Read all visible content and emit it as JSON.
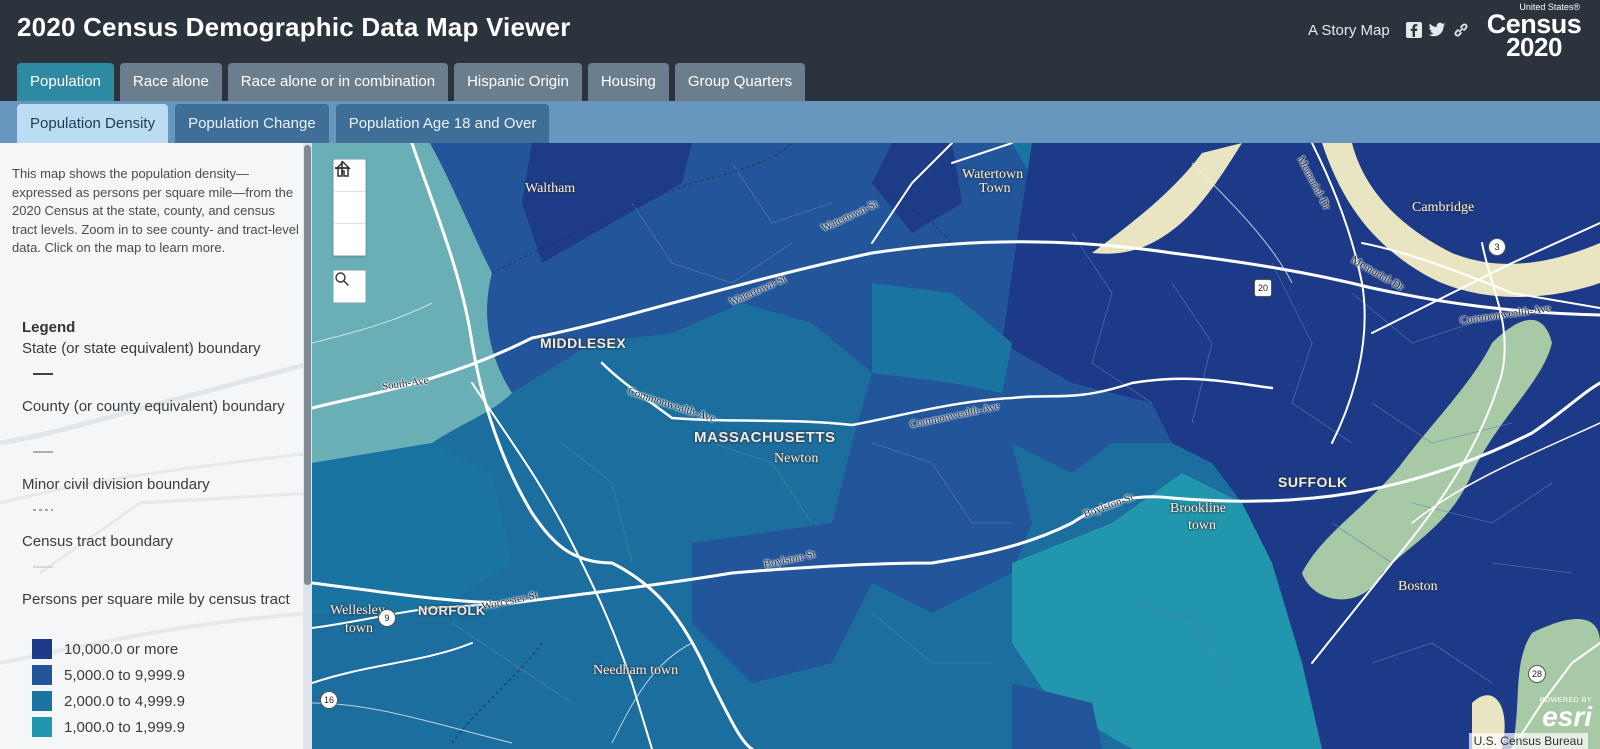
{
  "header": {
    "title": "2020 Census Demographic Data Map Viewer",
    "story_map": "A Story Map",
    "logo": {
      "line1": "United States®",
      "line2": "Census",
      "line3": "2020"
    }
  },
  "tabs": [
    {
      "label": "Population",
      "active": true
    },
    {
      "label": "Race alone",
      "active": false
    },
    {
      "label": "Race alone or in combination",
      "active": false
    },
    {
      "label": "Hispanic Origin",
      "active": false
    },
    {
      "label": "Housing",
      "active": false
    },
    {
      "label": "Group Quarters",
      "active": false
    }
  ],
  "subtabs": [
    {
      "label": "Population Density",
      "active": true
    },
    {
      "label": "Population Change",
      "active": false
    },
    {
      "label": "Population Age 18 and Over",
      "active": false
    }
  ],
  "sidebar": {
    "intro": "This map shows the population density—expressed as persons per square mile—from the 2020 Census at the state, county, and census tract levels. Zoom in to see county- and tract-level data. Click on the map to learn more.",
    "legend_title": "Legend",
    "boundaries": [
      {
        "label": "State (or state equivalent) boundary"
      },
      {
        "label": "County (or county equivalent) boundary"
      },
      {
        "label": "Minor civil division boundary"
      },
      {
        "label": "Census tract boundary"
      }
    ],
    "density_title": "Persons per square mile by census tract",
    "classes": [
      {
        "label": "10,000.0 or more",
        "color": "#1c3a87"
      },
      {
        "label": "5,000.0 to 9,999.9",
        "color": "#22559a"
      },
      {
        "label": "2,000.0 to 4,999.9",
        "color": "#1a74a1"
      },
      {
        "label": "1,000.0 to 1,999.9",
        "color": "#2296ad"
      }
    ]
  },
  "map": {
    "places": {
      "waltham": "Waltham",
      "watertown_1": "Watertown",
      "watertown_2": "Town",
      "cambridge": "Cambridge",
      "middlesex": "MIDDLESEX",
      "massachusetts": "MASSACHUSETTS",
      "newton": "Newton",
      "suffolk": "SUFFOLK",
      "brookline_1": "Brookline",
      "brookline_2": "town",
      "boston": "Boston",
      "wellesley_1": "Wellesley",
      "wellesley_2": "town",
      "norfolk": "NORFOLK",
      "needham": "Needham town"
    },
    "roads": {
      "watertown_st_1": "Watertown-St",
      "watertown_st_2": "Watertown-St",
      "memorial_dr_1": "Memorial-Dr",
      "memorial_dr_2": "Memorial-Dr",
      "commonwealth_1": "Commonwealth-Ave",
      "commonwealth_2": "Commonwealth-Ave",
      "commonwealth_3": "Commonwealth-Ave",
      "south_ave": "South-Ave",
      "boylston_1": "Boylston-St",
      "boylston_2": "Boylston-St",
      "worcester_st": "Worcester-St"
    },
    "shields": {
      "s20": "20",
      "s3": "3",
      "s9": "9",
      "s16": "16",
      "s28": "28"
    },
    "attribution": "U.S. Census Bureau",
    "esri_powered": "POWERED BY",
    "esri": "esri"
  },
  "colors": {
    "header_bg": "#2b343c",
    "tab_active": "#2e8aa3",
    "subtab_active": "#bcdcf2",
    "park": "#a7c9a5",
    "water": "#e9e5c3"
  },
  "icons": [
    "facebook-icon",
    "twitter-icon",
    "link-icon",
    "zoom-in-icon",
    "home-icon",
    "zoom-out-icon",
    "search-icon"
  ]
}
